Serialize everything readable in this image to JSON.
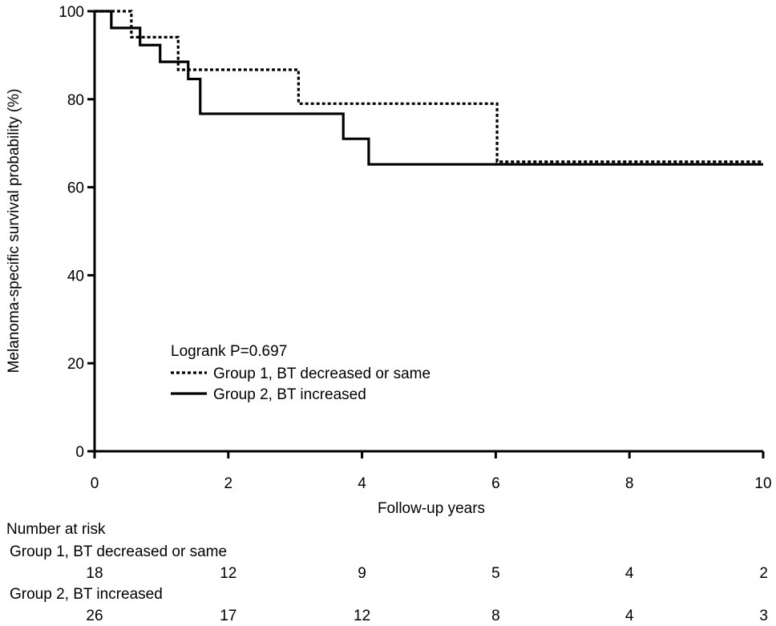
{
  "chart_data": {
    "type": "line",
    "subtype": "kaplan-meier",
    "xlabel": "Follow-up years",
    "ylabel": "Melanoma-specific survival probability (%)",
    "xlim": [
      0,
      10
    ],
    "ylim": [
      0,
      100
    ],
    "xticks": [
      0,
      2,
      4,
      6,
      8,
      10
    ],
    "yticks": [
      0,
      20,
      40,
      60,
      80,
      100
    ],
    "legend": {
      "title": "Logrank P=0.697",
      "placement": "center-left",
      "entries": [
        {
          "label": "Group 1, BT decreased or same",
          "style": "dotted"
        },
        {
          "label": "Group 2, BT increased",
          "style": "solid"
        }
      ]
    },
    "series": [
      {
        "name": "Group 1, BT decreased or same",
        "style": "dotted",
        "color": "#000000",
        "steps": [
          {
            "x": 0,
            "y": 100
          },
          {
            "x": 0.55,
            "y": 94.1
          },
          {
            "x": 1.25,
            "y": 86.7
          },
          {
            "x": 3.05,
            "y": 79.0
          },
          {
            "x": 6.02,
            "y": 65.8
          }
        ],
        "x_end": 10
      },
      {
        "name": "Group 2, BT increased",
        "style": "solid",
        "color": "#000000",
        "steps": [
          {
            "x": 0,
            "y": 100
          },
          {
            "x": 0.25,
            "y": 96.2
          },
          {
            "x": 0.68,
            "y": 92.3
          },
          {
            "x": 0.98,
            "y": 88.5
          },
          {
            "x": 1.4,
            "y": 84.6
          },
          {
            "x": 1.58,
            "y": 76.7
          },
          {
            "x": 3.72,
            "y": 71.0
          },
          {
            "x": 4.1,
            "y": 65.2
          }
        ],
        "x_end": 10
      }
    ],
    "risk_table": {
      "title": "Number at risk",
      "times": [
        0,
        2,
        4,
        6,
        8,
        10
      ],
      "groups": [
        {
          "label": "Group 1, BT decreased or same",
          "counts": [
            "18",
            "12",
            "9",
            "5",
            "4",
            "2"
          ]
        },
        {
          "label": "Group 2, BT increased",
          "counts": [
            "26",
            "17",
            "12",
            "8",
            "4",
            "3"
          ]
        }
      ]
    }
  }
}
